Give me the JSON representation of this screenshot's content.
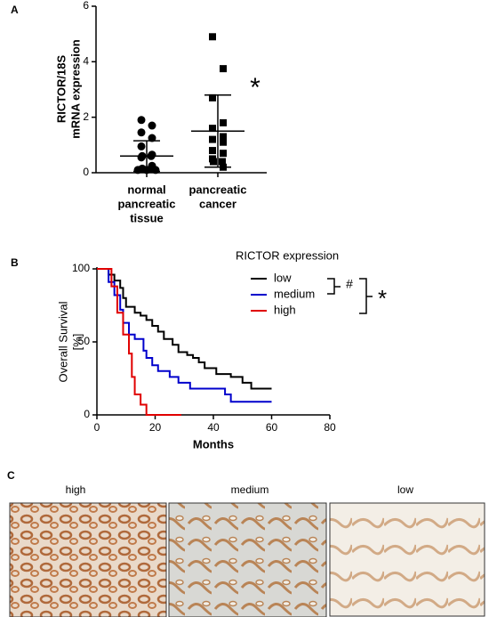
{
  "panel_labels": [
    "A",
    "B",
    "C"
  ],
  "chart_data": [
    {
      "type": "dot",
      "ylabel": [
        "RICTOR/18S",
        "mRNA expression"
      ],
      "categories": [
        [
          "normal",
          "pancreatic",
          "tissue"
        ],
        [
          "pancreatic",
          "cancer"
        ]
      ],
      "values": [
        [
          1.9,
          1.7,
          1.45,
          1.25,
          0.95,
          0.65,
          0.6,
          0.6,
          0.55,
          0.25,
          0.15,
          0.15,
          0.1,
          0.1,
          0.1
        ],
        [
          4.9,
          3.75,
          2.7,
          1.8,
          1.6,
          1.3,
          1.2,
          1.1,
          0.8,
          0.7,
          0.5,
          0.4,
          0.4,
          0.2
        ]
      ],
      "means": [
        0.6,
        1.5
      ],
      "errors": [
        0.55,
        1.3
      ],
      "markers": [
        "circle",
        "square"
      ],
      "color": "#000000",
      "annotation": "*",
      "ylim": [
        0,
        6
      ],
      "yticks": [
        0,
        2,
        4,
        6
      ]
    },
    {
      "type": "survival",
      "xlabel": "Months",
      "ylabel": [
        "Overall Survival",
        "[%]"
      ],
      "legend_title": "RICTOR expression",
      "series": [
        {
          "name": "low",
          "color": "#000000",
          "x": [
            0,
            4,
            6,
            8,
            9,
            10,
            13,
            15,
            17,
            19,
            21,
            23,
            26,
            28,
            31,
            33,
            35,
            37,
            41,
            46,
            50,
            53,
            60
          ],
          "values": [
            100,
            96,
            92,
            87,
            80,
            74,
            70,
            68,
            65,
            61,
            57,
            52,
            48,
            43,
            41,
            39,
            36,
            32,
            28,
            26,
            22,
            18,
            18
          ]
        },
        {
          "name": "medium",
          "color": "#0000cc",
          "x": [
            0,
            3,
            4,
            6,
            8,
            9,
            11,
            13,
            16,
            17,
            19,
            21,
            25,
            28,
            32,
            44,
            46,
            60
          ],
          "values": [
            100,
            100,
            91,
            82,
            72,
            63,
            55,
            52,
            44,
            39,
            34,
            30,
            26,
            22,
            18,
            14,
            9,
            9
          ]
        },
        {
          "name": "high",
          "color": "#e00000",
          "x": [
            0,
            4,
            5,
            7,
            9,
            11,
            12,
            13,
            15,
            17,
            29
          ],
          "values": [
            100,
            100,
            88,
            70,
            55,
            42,
            26,
            14,
            7,
            0,
            0
          ]
        }
      ],
      "annotations": [
        "#",
        "*"
      ],
      "xlim": [
        0,
        80
      ],
      "xticks": [
        0,
        20,
        40,
        60,
        80
      ],
      "ylim": [
        0,
        100
      ],
      "yticks": [
        0,
        50,
        100
      ]
    }
  ],
  "micrographs": {
    "captions": [
      "high",
      "medium",
      "low"
    ]
  }
}
